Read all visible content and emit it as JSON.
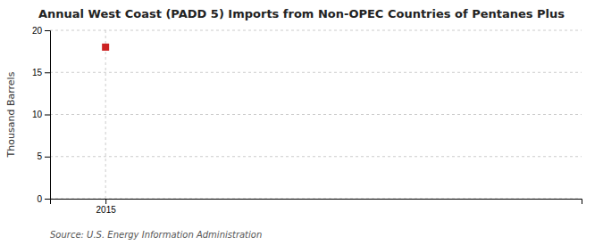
{
  "chart_data": {
    "type": "scatter",
    "title": "Annual West Coast (PADD 5) Imports from Non-OPEC Countries of Pentanes Plus",
    "y_label": "Thousand Barrels",
    "source": "Source: U.S. Energy Information Administration",
    "x": [
      2015
    ],
    "values": [
      18
    ],
    "color": "#cc2222",
    "marker": "square",
    "xlim": [
      2014.3,
      2021.0
    ],
    "xticks": [
      2015
    ],
    "ylim": [
      0,
      20
    ],
    "yticks": [
      0,
      5,
      10,
      15,
      20
    ],
    "grid": true
  }
}
